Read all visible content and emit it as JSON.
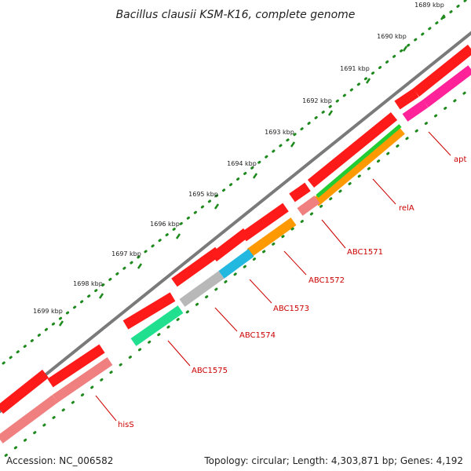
{
  "title": "Bacillus clausii KSM-K16, complete genome",
  "accession_text": "Accession: NC_006582",
  "topology_text": "Topology: circular; Length: 4,303,871 bp; Genes: 4,192",
  "colors": {
    "backbone": "#7a7a7a",
    "ticks": "#1e8a1e",
    "label": "#cc0000"
  },
  "scale_ticks": [
    "1689 kbp",
    "1690 kbp",
    "1691 kbp",
    "1692 kbp",
    "1693 kbp",
    "1694 kbp",
    "1695 kbp",
    "1696 kbp",
    "1697 kbp",
    "1698 kbp",
    "1699 kbp"
  ],
  "genes": [
    {
      "name": "apt",
      "color": "#ff2299"
    },
    {
      "name": "relA",
      "color": "#ff9900"
    },
    {
      "name": "ABC1571",
      "color": "#f07f7f"
    },
    {
      "name": "ABC1572",
      "color": "#ff9900"
    },
    {
      "name": "ABC1573",
      "color": "#22b8e0"
    },
    {
      "name": "ABC1574",
      "color": "#b8b8b8"
    },
    {
      "name": "ABC1575",
      "color": "#20e090"
    },
    {
      "name": "hisS",
      "color": "#f07f7f"
    }
  ]
}
